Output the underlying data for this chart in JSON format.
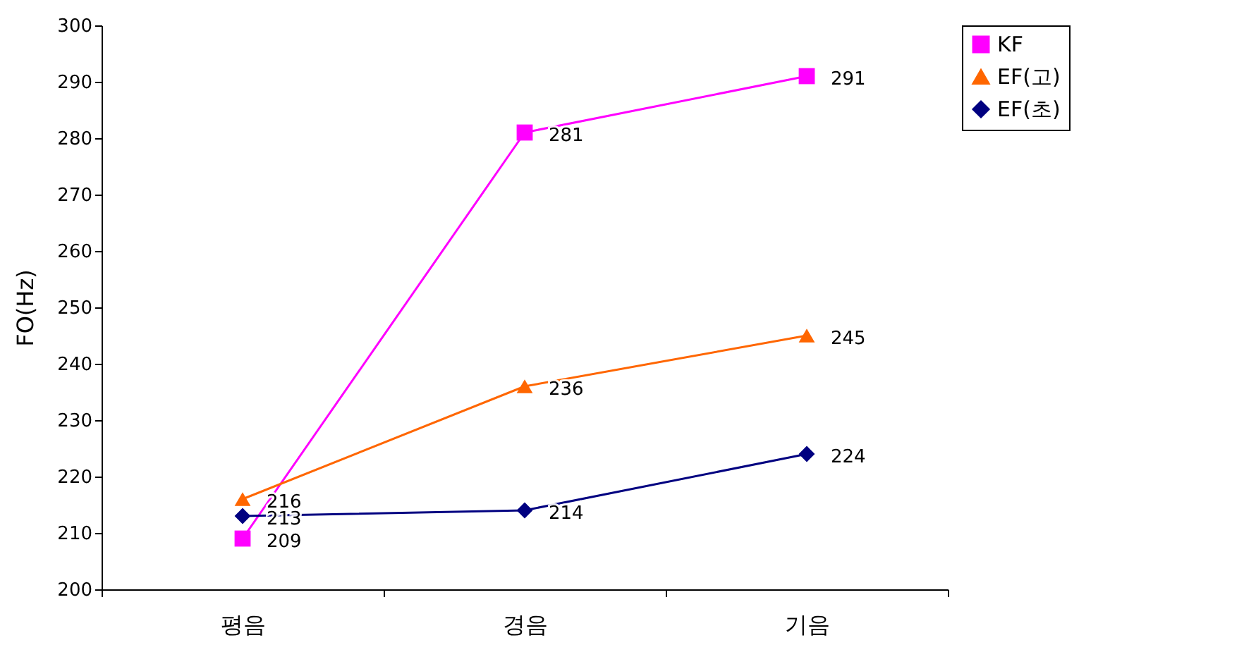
{
  "chart_data": {
    "type": "line",
    "ylabel": "FO(Hz)",
    "categories": [
      "평음",
      "경음",
      "기음"
    ],
    "series": [
      {
        "name": "KF",
        "color": "#ff00ff",
        "marker": "square",
        "values": [
          209,
          281,
          291
        ]
      },
      {
        "name": "EF(고)",
        "color": "#ff6600",
        "marker": "triangle",
        "values": [
          216,
          236,
          245
        ]
      },
      {
        "name": "EF(초)",
        "color": "#000080",
        "marker": "diamond",
        "values": [
          213,
          214,
          224
        ]
      }
    ],
    "ylim": [
      200,
      300
    ],
    "yticks": [
      200,
      210,
      220,
      230,
      240,
      250,
      260,
      270,
      280,
      290,
      300
    ],
    "grid": false,
    "legend": "right",
    "data_labels": true
  }
}
